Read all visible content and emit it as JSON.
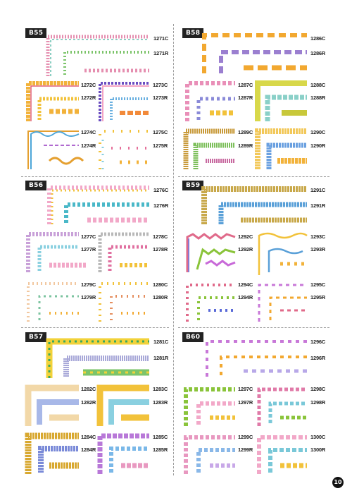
{
  "sections": [
    {
      "id": "B55",
      "items": [
        {
          "code": "1271C"
        },
        {
          "code": "1271R"
        },
        {
          "code": "1272C"
        },
        {
          "code": "1272R"
        },
        {
          "code": "1273C"
        },
        {
          "code": "1273R"
        },
        {
          "code": "1274C"
        },
        {
          "code": "1274R"
        },
        {
          "code": "1275C"
        },
        {
          "code": "1275R"
        }
      ]
    },
    {
      "id": "B58",
      "items": [
        {
          "code": "1286C"
        },
        {
          "code": "1286R"
        },
        {
          "code": "1287C"
        },
        {
          "code": "1287R"
        },
        {
          "code": "1288C"
        },
        {
          "code": "1288R"
        },
        {
          "code": "1289C"
        },
        {
          "code": "1289R"
        },
        {
          "code": "1290C"
        },
        {
          "code": "1290R"
        }
      ]
    },
    {
      "id": "B56",
      "items": [
        {
          "code": "1276C"
        },
        {
          "code": "1276R"
        },
        {
          "code": "1277C"
        },
        {
          "code": "1277R"
        },
        {
          "code": "1278C"
        },
        {
          "code": "1278R"
        },
        {
          "code": "1279C"
        },
        {
          "code": "1279R"
        },
        {
          "code": "1280C"
        },
        {
          "code": "1280R"
        }
      ]
    },
    {
      "id": "B59",
      "items": [
        {
          "code": "1291C"
        },
        {
          "code": "1291R"
        },
        {
          "code": "1292C"
        },
        {
          "code": "1292R"
        },
        {
          "code": "1293C"
        },
        {
          "code": "1293R"
        },
        {
          "code": "1294C"
        },
        {
          "code": "1294R"
        },
        {
          "code": "1295C"
        },
        {
          "code": "1295R"
        }
      ]
    },
    {
      "id": "B57",
      "items": [
        {
          "code": "1281C"
        },
        {
          "code": "1281R"
        },
        {
          "code": "1282C"
        },
        {
          "code": "1282R"
        },
        {
          "code": "1283C"
        },
        {
          "code": "1283R"
        },
        {
          "code": "1284C"
        },
        {
          "code": "1284R"
        },
        {
          "code": "1285C"
        },
        {
          "code": "1285R"
        }
      ]
    },
    {
      "id": "B60",
      "items": [
        {
          "code": "1296C"
        },
        {
          "code": "1296R"
        },
        {
          "code": "1297C"
        },
        {
          "code": "1297R"
        },
        {
          "code": "1298C"
        },
        {
          "code": "1298R"
        },
        {
          "code": "1299C"
        },
        {
          "code": "1299R"
        },
        {
          "code": "1300C"
        },
        {
          "code": "1300R"
        }
      ]
    }
  ],
  "page_number": "10"
}
